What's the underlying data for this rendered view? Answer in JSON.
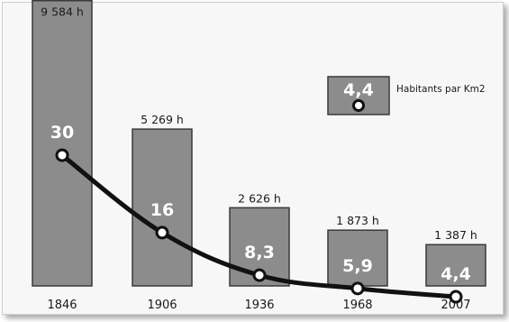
{
  "chart_data": {
    "type": "bar",
    "categories": [
      "1846",
      "1906",
      "1936",
      "1968",
      "2007"
    ],
    "series": [
      {
        "values": [
          9584,
          5269,
          2626,
          1873,
          1387
        ],
        "labels": [
          "9 584 h",
          "5 269 h",
          "2 626 h",
          "1 873 h",
          "1 387 h"
        ]
      },
      {
        "name": "Habitants par Km2",
        "values": [
          30,
          16,
          8.3,
          5.9,
          4.4
        ],
        "labels": [
          "30",
          "16",
          "8,3",
          "5,9",
          "4,4"
        ]
      }
    ],
    "legend": {
      "value_label": "4,4",
      "text": "Habitants par Km2",
      "position": "top-right"
    },
    "colors": {
      "bar": "#8c8c8c",
      "bar_edge": "#3a3a3a",
      "line": "#111111",
      "background": "#f7f7f7"
    },
    "grid": false
  }
}
